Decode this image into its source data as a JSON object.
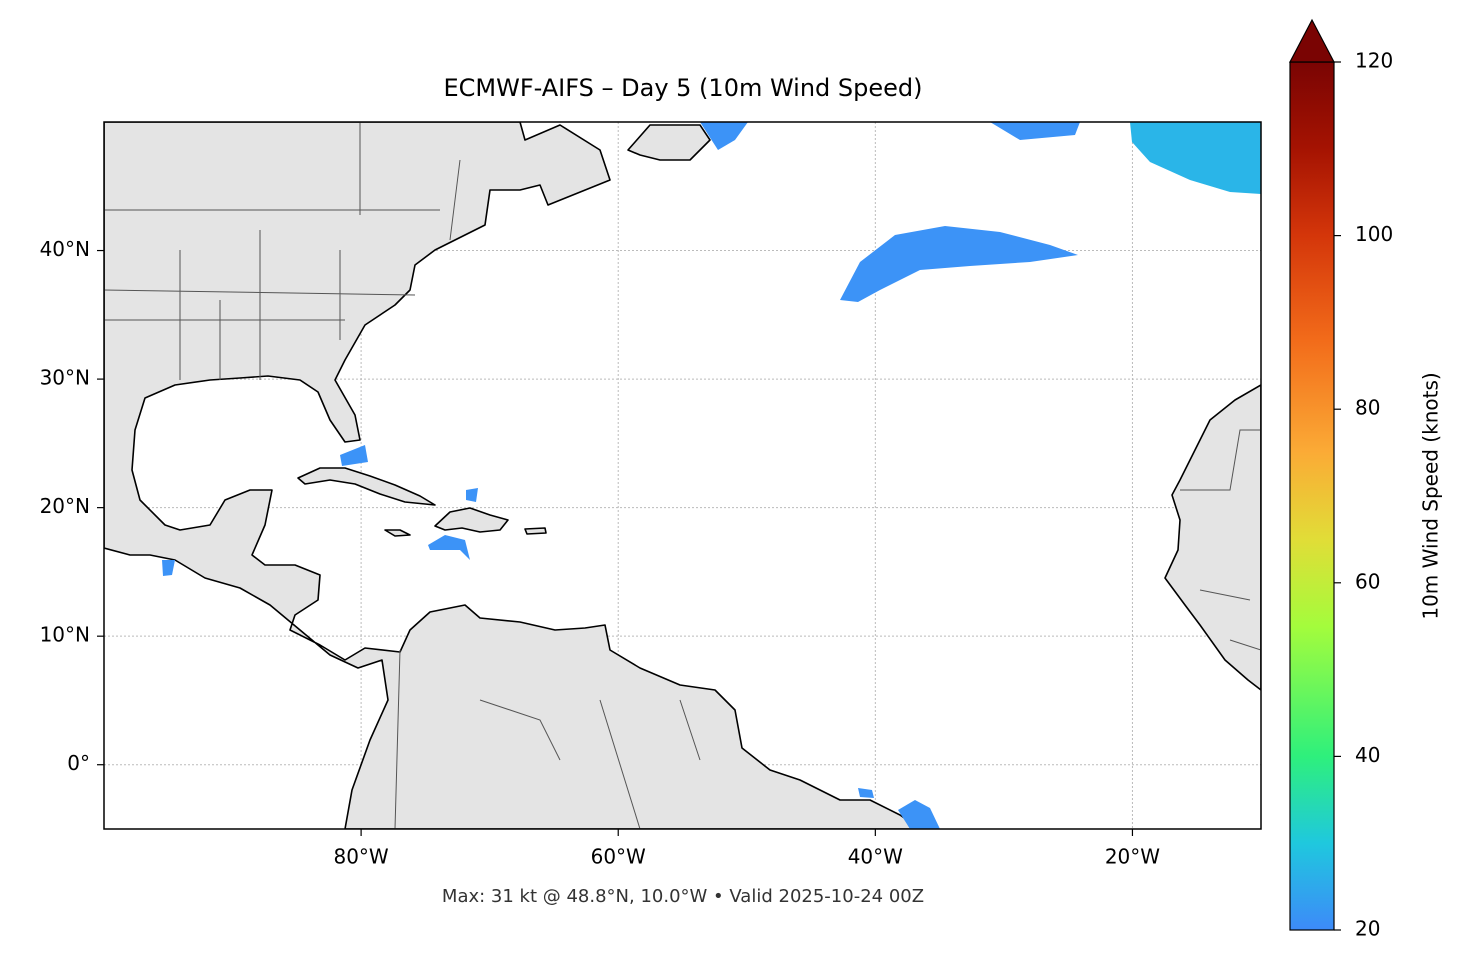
{
  "title": "ECMWF-AIFS – Day 5 (10m Wind Speed)",
  "caption": "Max: 31 kt @ 48.8°N, 10.0°W • Valid 2025-10-24 00Z",
  "map": {
    "lonlim": [
      -100,
      -10
    ],
    "latlim": [
      -5,
      50
    ],
    "lonticks": [
      {
        "value": -80,
        "label": "80°W"
      },
      {
        "value": -60,
        "label": "60°W"
      },
      {
        "value": -40,
        "label": "40°W"
      },
      {
        "value": -20,
        "label": "20°W"
      }
    ],
    "latticks": [
      {
        "value": 0,
        "label": "0°"
      },
      {
        "value": 10,
        "label": "10°N"
      },
      {
        "value": 20,
        "label": "20°N"
      },
      {
        "value": 30,
        "label": "30°N"
      },
      {
        "value": 40,
        "label": "40°N"
      }
    ],
    "grid": true
  },
  "colorbar": {
    "label": "10m Wind Speed (knots)",
    "lim": [
      20,
      120
    ],
    "ticks": [
      20,
      40,
      60,
      80,
      100,
      120
    ]
  }
}
